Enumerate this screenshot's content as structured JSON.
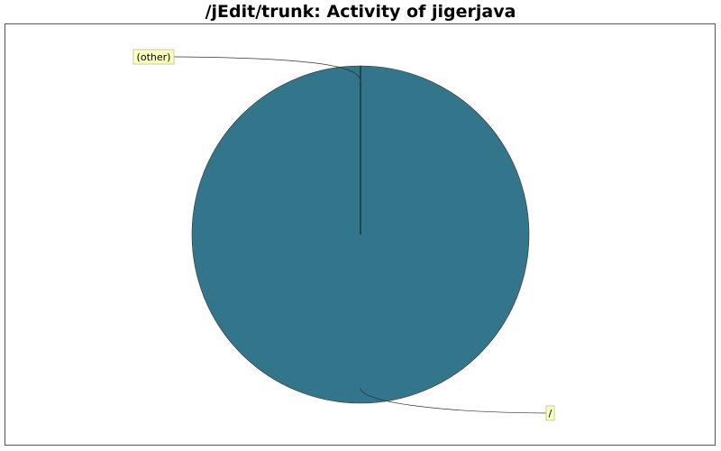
{
  "chart_data": {
    "type": "pie",
    "title": "/jEdit/trunk: Activity of jigerjava",
    "slices": [
      {
        "label": "/",
        "value": 100,
        "color": "#33758b"
      },
      {
        "label": "(other)",
        "value": 0,
        "color": "#33758b"
      }
    ],
    "legend": "none"
  }
}
